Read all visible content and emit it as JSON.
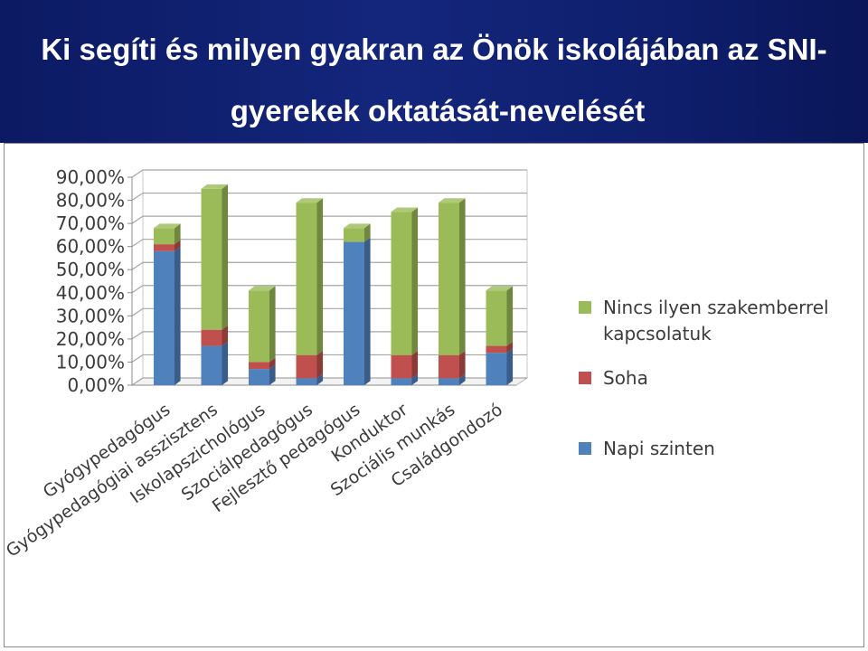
{
  "slide": {
    "title_line1": "Ki segíti és milyen gyakran az Önök iskolájában az SNI-",
    "title_line2": "gyerekek oktatását-nevelését"
  },
  "chart_data": {
    "type": "bar",
    "stacked": true,
    "three_d": true,
    "title": "",
    "xlabel": "",
    "ylabel": "",
    "ylim": [
      0,
      90
    ],
    "y_ticks": [
      "0,00%",
      "10,00%",
      "20,00%",
      "30,00%",
      "40,00%",
      "50,00%",
      "60,00%",
      "70,00%",
      "80,00%",
      "90,00%"
    ],
    "grid": true,
    "legend_position": "right",
    "categories": [
      "Gyógypedagógus",
      "Gyógypedagógiai asszisztens",
      "Iskolapszichológus",
      "Szociálpedagógus",
      "Fejlesztő pedagógus",
      "Konduktor",
      "Szociális munkás",
      "Családgondozó"
    ],
    "series": [
      {
        "name": "Napi szinten",
        "color": "#4f81bd",
        "values": [
          58,
          17,
          7,
          3,
          62,
          3,
          3,
          14
        ]
      },
      {
        "name": "Soha",
        "color": "#c0504d",
        "values": [
          3,
          7,
          3,
          10,
          0,
          10,
          10,
          3
        ]
      },
      {
        "name": "Nincs ilyen szakemberrel kapcsolatuk",
        "color": "#9bbb59",
        "values": [
          7,
          61,
          31,
          66,
          6,
          62,
          66,
          24
        ]
      }
    ],
    "legend": [
      {
        "label_lines": [
          "Nincs ilyen szakemberrel",
          "kapcsolatuk"
        ],
        "color": "#9bbb59"
      },
      {
        "label_lines": [
          "Soha"
        ],
        "color": "#c0504d"
      },
      {
        "label_lines": [
          "Napi szinten"
        ],
        "color": "#4f81bd"
      }
    ]
  }
}
